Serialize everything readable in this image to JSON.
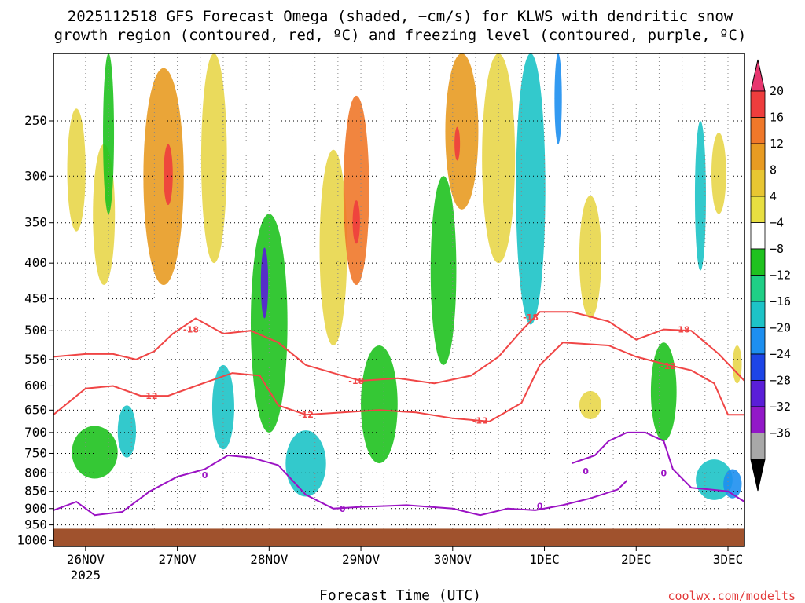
{
  "chart_data": {
    "type": "heatmap",
    "title_line1": "2025112518 GFS Forecast Omega (shaded, −cm/s) for KLWS with dendritic snow",
    "title_line2": "growth region (contoured, red, ºC) and freezing level (contoured, purple, ºC)",
    "xlabel": "Forecast Time (UTC)",
    "credit": "coolwx.com/modelts",
    "x_range_days": [
      -0.35,
      7.18
    ],
    "x_ticks": [
      {
        "day": 0,
        "label": "26NOV",
        "sublabel": "2025"
      },
      {
        "day": 1,
        "label": "27NOV",
        "sublabel": ""
      },
      {
        "day": 2,
        "label": "28NOV",
        "sublabel": ""
      },
      {
        "day": 3,
        "label": "29NOV",
        "sublabel": ""
      },
      {
        "day": 4,
        "label": "30NOV",
        "sublabel": ""
      },
      {
        "day": 5,
        "label": "1DEC",
        "sublabel": ""
      },
      {
        "day": 6,
        "label": "2DEC",
        "sublabel": ""
      },
      {
        "day": 7,
        "label": "3DEC",
        "sublabel": ""
      }
    ],
    "y_ticks": [
      {
        "p": 250,
        "label": "250"
      },
      {
        "p": 300,
        "label": "300"
      },
      {
        "p": 350,
        "label": "350"
      },
      {
        "p": 400,
        "label": "400"
      },
      {
        "p": 450,
        "label": "450"
      },
      {
        "p": 500,
        "label": "500"
      },
      {
        "p": 550,
        "label": "550"
      },
      {
        "p": 600,
        "label": "600"
      },
      {
        "p": 650,
        "label": "650"
      },
      {
        "p": 700,
        "label": "700"
      },
      {
        "p": 750,
        "label": "750"
      },
      {
        "p": 800,
        "label": "800"
      },
      {
        "p": 850,
        "label": "850"
      },
      {
        "p": 900,
        "label": "900"
      },
      {
        "p": 950,
        "label": "950"
      },
      {
        "p": 1000,
        "label": "1000"
      }
    ],
    "y_range_hpa": [
      200,
      1020
    ],
    "colorbar": {
      "levels": [
        "20",
        "16",
        "12",
        "8",
        "4",
        "−4",
        "−8",
        "−12",
        "−16",
        "−20",
        "−24",
        "−28",
        "−32",
        "−36"
      ],
      "colors": [
        "#e8366f",
        "#ee3d3d",
        "#f0782a",
        "#e89b22",
        "#e8c632",
        "#e8df41",
        "#ffffff",
        "#1fc21f",
        "#1fcf86",
        "#1dc3c7",
        "#1d8ff0",
        "#1d45e6",
        "#5a1ed8",
        "#9218c8",
        "#a8a8a8",
        "#000000"
      ]
    },
    "omega_blobs": [
      {
        "day": -0.1,
        "p": 300,
        "c": 4,
        "w": 0.1,
        "h": 120
      },
      {
        "day": 0.2,
        "p": 350,
        "c": 4,
        "w": 0.12,
        "h": 160
      },
      {
        "day": 0.85,
        "p": 320,
        "c": 8,
        "w": 0.22,
        "h": 220
      },
      {
        "day": 0.9,
        "p": 300,
        "c": 16,
        "w": 0.05,
        "h": 60
      },
      {
        "day": 1.4,
        "p": 300,
        "c": 4,
        "w": 0.14,
        "h": 200
      },
      {
        "day": 2.7,
        "p": 400,
        "c": 4,
        "w": 0.15,
        "h": 250
      },
      {
        "day": 2.95,
        "p": 330,
        "c": 12,
        "w": 0.14,
        "h": 200
      },
      {
        "day": 2.95,
        "p": 350,
        "c": 16,
        "w": 0.04,
        "h": 50
      },
      {
        "day": 4.1,
        "p": 260,
        "c": 8,
        "w": 0.18,
        "h": 150
      },
      {
        "day": 4.05,
        "p": 270,
        "c": 16,
        "w": 0.03,
        "h": 30
      },
      {
        "day": 4.5,
        "p": 300,
        "c": 4,
        "w": 0.18,
        "h": 200
      },
      {
        "day": 5.5,
        "p": 400,
        "c": 4,
        "w": 0.12,
        "h": 160
      },
      {
        "day": 5.5,
        "p": 640,
        "c": 4,
        "w": 0.12,
        "h": 60
      },
      {
        "day": 6.9,
        "p": 300,
        "c": 4,
        "w": 0.08,
        "h": 80
      },
      {
        "day": 7.1,
        "p": 560,
        "c": 4,
        "w": 0.05,
        "h": 70
      },
      {
        "day": 0.1,
        "p": 750,
        "c": -8,
        "w": 0.25,
        "h": 130
      },
      {
        "day": 0.45,
        "p": 700,
        "c": -12,
        "w": 0.1,
        "h": 120
      },
      {
        "day": 0.25,
        "p": 200,
        "c": -8,
        "w": 0.06,
        "h": 280
      },
      {
        "day": 1.5,
        "p": 650,
        "c": -12,
        "w": 0.12,
        "h": 180
      },
      {
        "day": 2.0,
        "p": 520,
        "c": -8,
        "w": 0.2,
        "h": 360
      },
      {
        "day": 1.95,
        "p": 430,
        "c": -24,
        "w": 0.04,
        "h": 100
      },
      {
        "day": 2.4,
        "p": 780,
        "c": -12,
        "w": 0.22,
        "h": 170
      },
      {
        "day": 3.2,
        "p": 650,
        "c": -8,
        "w": 0.2,
        "h": 250
      },
      {
        "day": 3.9,
        "p": 430,
        "c": -8,
        "w": 0.14,
        "h": 260
      },
      {
        "day": 4.85,
        "p": 320,
        "c": -12,
        "w": 0.16,
        "h": 340
      },
      {
        "day": 5.15,
        "p": 210,
        "c": -16,
        "w": 0.04,
        "h": 120
      },
      {
        "day": 6.3,
        "p": 620,
        "c": -8,
        "w": 0.14,
        "h": 200
      },
      {
        "day": 6.7,
        "p": 330,
        "c": -12,
        "w": 0.06,
        "h": 160
      },
      {
        "day": 6.85,
        "p": 820,
        "c": -12,
        "w": 0.2,
        "h": 110
      },
      {
        "day": 7.05,
        "p": 830,
        "c": -16,
        "w": 0.1,
        "h": 80
      }
    ],
    "contours": [
      {
        "name": "-18",
        "color": "#f04545",
        "label_positions": [
          {
            "day": 1.15,
            "p": 498
          },
          {
            "day": 2.95,
            "p": 590
          },
          {
            "day": 4.85,
            "p": 478
          },
          {
            "day": 6.5,
            "p": 498
          }
        ],
        "points": [
          [
            -0.35,
            545
          ],
          [
            0,
            540
          ],
          [
            0.3,
            540
          ],
          [
            0.55,
            550
          ],
          [
            0.75,
            535
          ],
          [
            0.95,
            505
          ],
          [
            1.2,
            480
          ],
          [
            1.5,
            505
          ],
          [
            1.8,
            500
          ],
          [
            2.1,
            520
          ],
          [
            2.4,
            560
          ],
          [
            2.7,
            575
          ],
          [
            3.0,
            590
          ],
          [
            3.4,
            585
          ],
          [
            3.8,
            595
          ],
          [
            4.2,
            580
          ],
          [
            4.5,
            545
          ],
          [
            4.75,
            500
          ],
          [
            4.95,
            470
          ],
          [
            5.3,
            470
          ],
          [
            5.7,
            485
          ],
          [
            6.0,
            515
          ],
          [
            6.3,
            498
          ],
          [
            6.6,
            500
          ],
          [
            6.9,
            540
          ],
          [
            7.18,
            590
          ]
        ]
      },
      {
        "name": "-12",
        "color": "#f04545",
        "label_positions": [
          {
            "day": 0.7,
            "p": 620
          },
          {
            "day": 2.4,
            "p": 660
          },
          {
            "day": 4.3,
            "p": 673
          },
          {
            "day": 6.35,
            "p": 562
          }
        ],
        "points": [
          [
            -0.35,
            660
          ],
          [
            0,
            605
          ],
          [
            0.3,
            600
          ],
          [
            0.6,
            620
          ],
          [
            0.9,
            620
          ],
          [
            1.2,
            600
          ],
          [
            1.6,
            575
          ],
          [
            1.9,
            580
          ],
          [
            2.1,
            640
          ],
          [
            2.4,
            660
          ],
          [
            2.8,
            655
          ],
          [
            3.2,
            650
          ],
          [
            3.6,
            655
          ],
          [
            4.0,
            668
          ],
          [
            4.4,
            675
          ],
          [
            4.75,
            635
          ],
          [
            4.95,
            560
          ],
          [
            5.2,
            520
          ],
          [
            5.7,
            525
          ],
          [
            6.0,
            545
          ],
          [
            6.35,
            560
          ],
          [
            6.6,
            570
          ],
          [
            6.85,
            595
          ],
          [
            7.0,
            660
          ],
          [
            7.18,
            660
          ]
        ]
      },
      {
        "name": "0",
        "color": "#9b12c4",
        "label_positions": [
          {
            "day": 1.3,
            "p": 805
          },
          {
            "day": 2.8,
            "p": 900
          },
          {
            "day": 4.95,
            "p": 893
          },
          {
            "day": 5.45,
            "p": 795
          },
          {
            "day": 6.3,
            "p": 800
          }
        ],
        "points": [
          [
            -0.35,
            905
          ],
          [
            -0.1,
            880
          ],
          [
            0.1,
            920
          ],
          [
            0.4,
            910
          ],
          [
            0.7,
            850
          ],
          [
            1.0,
            810
          ],
          [
            1.3,
            790
          ],
          [
            1.55,
            755
          ],
          [
            1.8,
            760
          ],
          [
            2.1,
            780
          ],
          [
            2.4,
            860
          ],
          [
            2.7,
            900
          ],
          [
            3.0,
            895
          ],
          [
            3.5,
            890
          ],
          [
            4.0,
            900
          ],
          [
            4.3,
            920
          ],
          [
            4.6,
            900
          ],
          [
            4.9,
            905
          ],
          [
            5.2,
            890
          ],
          [
            5.5,
            870
          ],
          [
            5.8,
            845
          ],
          [
            5.9,
            820
          ]
        ]
      },
      {
        "name": "0b",
        "color": "#9b12c4",
        "label_positions": [],
        "points": [
          [
            5.3,
            775
          ],
          [
            5.55,
            755
          ],
          [
            5.7,
            720
          ],
          [
            5.9,
            700
          ],
          [
            6.1,
            700
          ],
          [
            6.3,
            720
          ],
          [
            6.4,
            790
          ],
          [
            6.6,
            840
          ],
          [
            6.8,
            845
          ],
          [
            7.0,
            850
          ],
          [
            7.18,
            880
          ]
        ]
      }
    ],
    "surface_color": "#a0522d",
    "surface_top_p": 962
  }
}
